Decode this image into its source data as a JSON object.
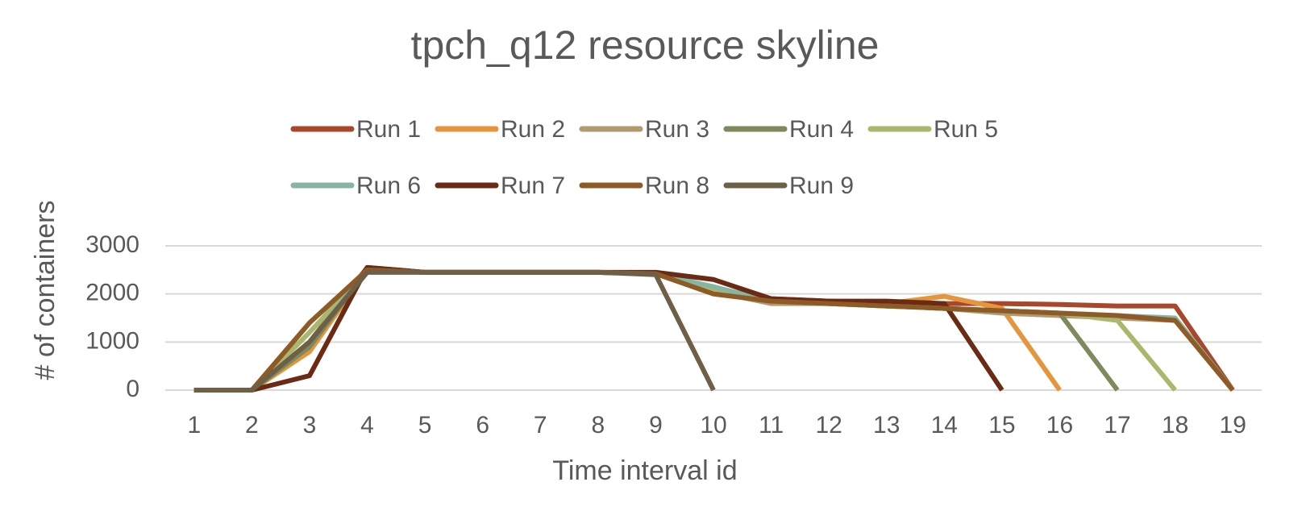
{
  "chart_data": {
    "type": "line",
    "title": "tpch_q12 resource skyline",
    "x_label": "Time interval id",
    "y_label": "# of containers",
    "categories": [
      "1",
      "2",
      "3",
      "4",
      "5",
      "6",
      "7",
      "8",
      "9",
      "10",
      "11",
      "12",
      "13",
      "14",
      "15",
      "16",
      "17",
      "18",
      "19"
    ],
    "ylim": [
      0,
      3000
    ],
    "yticks": [
      0,
      1000,
      2000,
      3000
    ],
    "grid": true,
    "legend": "top",
    "series": [
      {
        "name": "Run 1",
        "color": "#a8472b",
        "values": [
          0,
          0,
          1000,
          2550,
          2450,
          2450,
          2450,
          2450,
          2430,
          2100,
          1900,
          1850,
          1800,
          1800,
          1800,
          1780,
          1750,
          1750,
          0
        ]
      },
      {
        "name": "Run 2",
        "color": "#e5963c",
        "values": [
          0,
          0,
          800,
          2500,
          2450,
          2450,
          2450,
          2450,
          2420,
          2050,
          1850,
          1850,
          1800,
          1950,
          1700,
          0,
          null,
          null,
          null
        ]
      },
      {
        "name": "Run 3",
        "color": "#b39a6e",
        "values": [
          0,
          0,
          900,
          2500,
          2450,
          2450,
          2450,
          2450,
          2420,
          2050,
          1800,
          1800,
          1750,
          1700,
          1600,
          1550,
          1500,
          1450,
          0
        ]
      },
      {
        "name": "Run 4",
        "color": "#7d8a5c",
        "values": [
          0,
          0,
          900,
          2500,
          2450,
          2450,
          2450,
          2450,
          2420,
          2100,
          1850,
          1800,
          1750,
          1700,
          1650,
          1600,
          0,
          null,
          null
        ]
      },
      {
        "name": "Run 5",
        "color": "#a9b86c",
        "values": [
          0,
          0,
          1200,
          2500,
          2450,
          2450,
          2450,
          2450,
          2420,
          2050,
          1850,
          1800,
          1750,
          1700,
          1650,
          1600,
          1450,
          0,
          null
        ]
      },
      {
        "name": "Run 6",
        "color": "#86b6a1",
        "values": [
          0,
          0,
          1000,
          2500,
          2450,
          2450,
          2450,
          2450,
          2420,
          2150,
          1850,
          1800,
          1750,
          1700,
          1650,
          1600,
          1550,
          1500,
          0
        ]
      },
      {
        "name": "Run 7",
        "color": "#6b2a14",
        "values": [
          0,
          0,
          300,
          2550,
          2450,
          2450,
          2450,
          2450,
          2450,
          2300,
          1900,
          1850,
          1850,
          1800,
          0,
          null,
          null,
          null,
          null
        ]
      },
      {
        "name": "Run 8",
        "color": "#8e5b26",
        "values": [
          0,
          0,
          1400,
          2500,
          2450,
          2450,
          2450,
          2450,
          2420,
          2000,
          1850,
          1800,
          1750,
          1700,
          1650,
          1600,
          1550,
          1450,
          0
        ]
      },
      {
        "name": "Run 9",
        "color": "#6e6046",
        "values": [
          0,
          0,
          1000,
          2450,
          2450,
          2450,
          2450,
          2450,
          2400,
          0,
          null,
          null,
          null,
          null,
          null,
          null,
          null,
          null,
          null
        ]
      }
    ]
  }
}
